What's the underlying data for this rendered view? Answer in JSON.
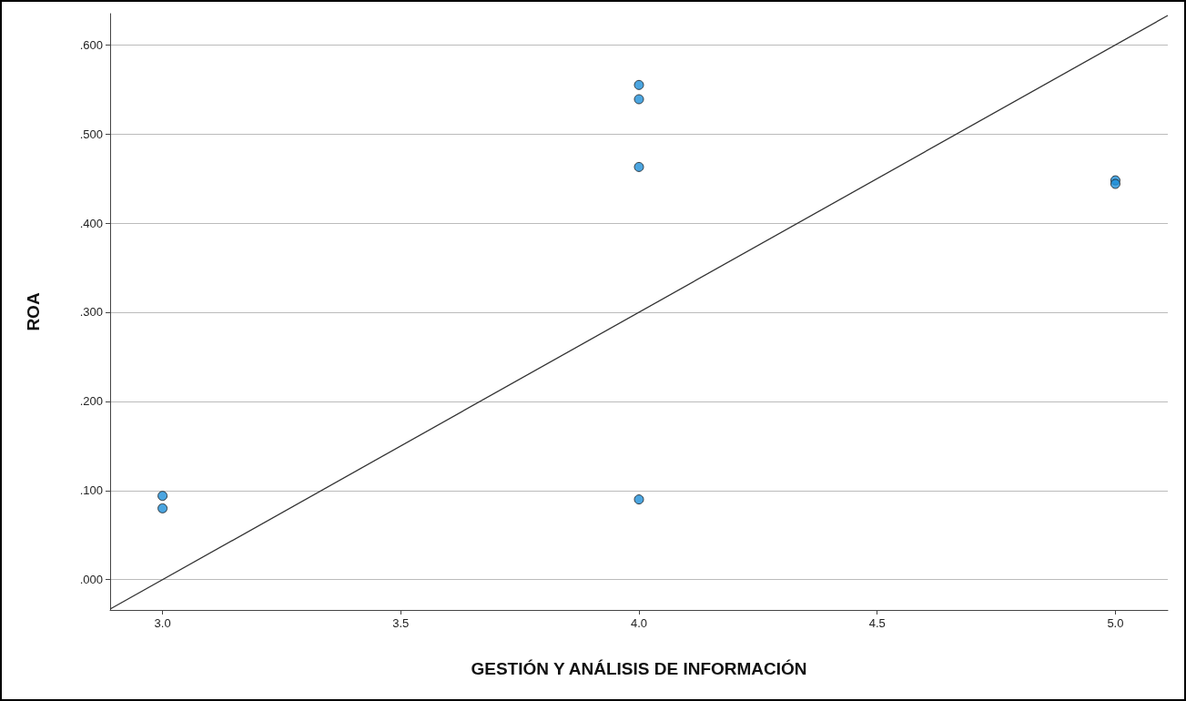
{
  "chart_data": {
    "type": "scatter",
    "xlabel": "GESTIÓN Y ANÁLISIS DE INFORMACIÓN",
    "ylabel": "ROA",
    "xlim": [
      2.89,
      5.11
    ],
    "ylim": [
      -0.034,
      0.635
    ],
    "xticks": [
      {
        "value": 3,
        "label": "3.0"
      },
      {
        "value": 3.5,
        "label": "3.5"
      },
      {
        "value": 4,
        "label": "4.0"
      },
      {
        "value": 4.5,
        "label": "4.5"
      },
      {
        "value": 5,
        "label": "5.0"
      }
    ],
    "yticks": [
      {
        "value": 0,
        "label": ".000"
      },
      {
        "value": 0.1,
        "label": ".100"
      },
      {
        "value": 0.2,
        "label": ".200"
      },
      {
        "value": 0.3,
        "label": ".300"
      },
      {
        "value": 0.4,
        "label": ".400"
      },
      {
        "value": 0.5,
        "label": ".500"
      },
      {
        "value": 0.6,
        "label": ".600"
      }
    ],
    "grid": "y",
    "marker": "circle",
    "series": [
      {
        "color": "#1e8fd8",
        "x": [
          3,
          3,
          4,
          4,
          4,
          4,
          5,
          5
        ],
        "values": [
          0.094,
          0.08,
          0.555,
          0.539,
          0.463,
          0.09,
          0.448,
          0.444
        ]
      },
      {
        "type": "line",
        "color": "#333333",
        "marker": "none",
        "line_style": "solid",
        "x": [
          2.89,
          5.11
        ],
        "values": [
          -0.033,
          0.633
        ]
      }
    ]
  }
}
